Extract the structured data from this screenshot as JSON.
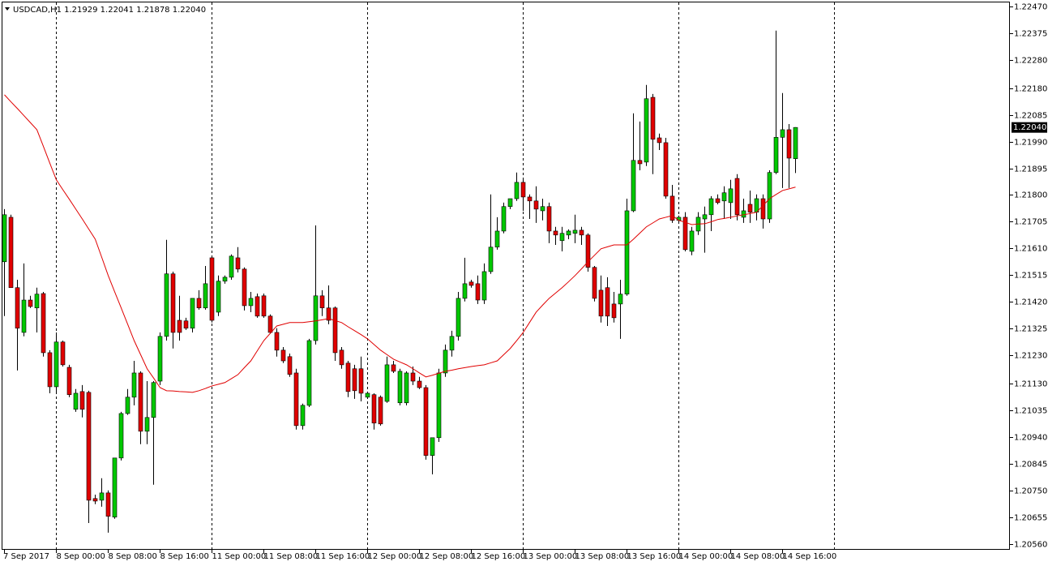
{
  "chart_data": {
    "type": "candlestick",
    "title": "USDCAD,H1  1.21929 1.22041 1.21878 1.22040",
    "last_price_label": "1.22040",
    "up_color": "#00c800",
    "down_color": "#e00000",
    "wick_color": "#000000",
    "ylim": [
      1.2054,
      1.22484
    ],
    "yticks": [
      {
        "value": 1.2247,
        "label": "1.22470"
      },
      1.22375,
      {
        "value": 1.2228,
        "label": "1.22280"
      },
      {
        "value": 1.2218,
        "label": "1.22180"
      },
      1.22085,
      {
        "value": 1.2199,
        "label": "1.21990"
      },
      1.21895,
      {
        "value": 1.218,
        "label": "1.21800"
      },
      1.21705,
      {
        "value": 1.2161,
        "label": "1.21610"
      },
      1.21515,
      {
        "value": 1.2142,
        "label": "1.21420"
      },
      1.21325,
      {
        "value": 1.2123,
        "label": "1.21230"
      },
      {
        "value": 1.2113,
        "label": "1.21130"
      },
      1.21035,
      {
        "value": 1.2094,
        "label": "1.20940"
      },
      1.20845,
      {
        "value": 1.2075,
        "label": "1.20750"
      },
      1.20655,
      {
        "value": 1.2056,
        "label": "1.20560"
      }
    ],
    "x": [
      "7 Sep 2017",
      null,
      null,
      null,
      null,
      null,
      null,
      null,
      "8 Sep 00:00",
      null,
      null,
      null,
      null,
      null,
      null,
      null,
      "8 Sep 08:00",
      null,
      null,
      null,
      null,
      null,
      null,
      null,
      "8 Sep 16:00",
      null,
      null,
      null,
      null,
      null,
      null,
      null,
      "11 Sep 00:00",
      null,
      null,
      null,
      null,
      null,
      null,
      null,
      "11 Sep 08:00",
      null,
      null,
      null,
      null,
      null,
      null,
      null,
      "11 Sep 16:00",
      null,
      null,
      null,
      null,
      null,
      null,
      null,
      "12 Sep 00:00",
      null,
      null,
      null,
      null,
      null,
      null,
      null,
      "12 Sep 08:00",
      null,
      null,
      null,
      null,
      null,
      null,
      null,
      "12 Sep 16:00",
      null,
      null,
      null,
      null,
      null,
      null,
      null,
      "13 Sep 00:00",
      null,
      null,
      null,
      null,
      null,
      null,
      null,
      "13 Sep 08:00",
      null,
      null,
      null,
      null,
      null,
      null,
      null,
      "13 Sep 16:00",
      null,
      null,
      null,
      null,
      null,
      null,
      null,
      "14 Sep 00:00",
      null,
      null,
      null,
      null,
      null,
      null,
      null,
      "14 Sep 08:00",
      null,
      null,
      null,
      null,
      null,
      null,
      null,
      "14 Sep 16:00",
      null,
      null
    ],
    "open": [
      1.21563,
      1.21721,
      1.21471,
      1.21312,
      1.21427,
      1.21399,
      1.2145,
      1.2124,
      1.21119,
      1.21278,
      1.21188,
      1.21039,
      1.21102,
      1.21099,
      1.20722,
      1.20716,
      1.20742,
      1.20656,
      1.20866,
      1.21024,
      1.21082,
      1.21168,
      1.20961,
      1.2101,
      1.21139,
      1.21298,
      1.2152,
      1.21355,
      1.21353,
      1.21327,
      1.21433,
      1.21399,
      1.21577,
      1.21384,
      1.21494,
      1.21508,
      1.21577,
      1.21537,
      1.21407,
      1.21439,
      1.21442,
      1.2137,
      1.21312,
      1.21249,
      1.21226,
      1.21168,
      1.20981,
      1.21053,
      1.21283,
      1.21442,
      1.21399,
      1.21399,
      1.21249,
      1.21203,
      1.21183,
      1.21183,
      1.21082,
      1.21091,
      1.21082,
      1.21067,
      1.21197,
      1.21062,
      1.21062,
      1.21168,
      1.21139,
      1.21116,
      1.20875,
      1.20938,
      1.21168,
      1.21249,
      1.21298,
      1.21433,
      1.21491,
      1.21485,
      1.21427,
      1.21528,
      1.21615,
      1.21672,
      1.21759,
      1.21787,
      1.21845,
      1.21793,
      1.21779,
      1.21744,
      1.21759,
      1.21672,
      1.21638,
      1.21658,
      1.21664,
      1.21675,
      1.21658,
      1.21543,
      1.21462,
      1.21471,
      1.21413,
      1.21413,
      1.21448,
      1.21744,
      1.21923,
      1.21917,
      1.22147,
      1.22003,
      1.21986,
      1.21796,
      1.2171,
      1.21721,
      1.216,
      1.21672,
      1.21715,
      1.2173,
      1.21787,
      1.21779,
      1.21773,
      1.21859,
      1.21721,
      1.21767,
      1.21739,
      1.21787,
      1.21715,
      1.2188,
      1.22005,
      1.22032,
      1.21929
    ],
    "high": [
      1.2175,
      1.2173,
      1.21499,
      1.21557,
      1.21442,
      1.21471,
      1.21456,
      1.21249,
      1.21312,
      1.21283,
      1.21197,
      1.21111,
      1.21125,
      1.21105,
      1.20736,
      1.20794,
      1.20751,
      1.20866,
      1.2103,
      1.21111,
      1.21211,
      1.21174,
      1.21139,
      1.21139,
      1.21312,
      1.21641,
      1.21528,
      1.21442,
      1.21364,
      1.21433,
      1.21462,
      1.21548,
      1.21583,
      1.21514,
      1.21514,
      1.21589,
      1.21615,
      1.21543,
      1.21456,
      1.2145,
      1.2145,
      1.21376,
      1.21327,
      1.2126,
      1.21237,
      1.21183,
      1.21059,
      1.21289,
      1.21692,
      1.21462,
      1.21479,
      1.21404,
      1.2126,
      1.21211,
      1.21197,
      1.21226,
      1.21102,
      1.21096,
      1.21088,
      1.21226,
      1.21211,
      1.21183,
      1.21174,
      1.21191,
      1.21154,
      1.21125,
      1.20938,
      1.21183,
      1.21269,
      1.21318,
      1.21456,
      1.21577,
      1.21499,
      1.21514,
      1.21557,
      1.21802,
      1.21721,
      1.21773,
      1.21787,
      1.2188,
      1.21854,
      1.21802,
      1.21831,
      1.21787,
      1.21773,
      1.21687,
      1.21687,
      1.21678,
      1.2173,
      1.21687,
      1.21664,
      1.21548,
      1.21514,
      1.21508,
      1.21456,
      1.21499,
      1.21787,
      1.2209,
      1.22061,
      1.22191,
      1.22159,
      1.22018,
      1.22003,
      1.21836,
      1.21727,
      1.21739,
      1.21687,
      1.21739,
      1.21759,
      1.21796,
      1.21802,
      1.21831,
      1.21854,
      1.21874,
      1.21787,
      1.21816,
      1.21802,
      1.21802,
      1.21888,
      1.22384,
      1.22162,
      1.22052,
      1.22041
    ],
    "low": [
      1.2137,
      1.21471,
      1.21177,
      1.21298,
      1.21399,
      1.21312,
      1.21226,
      1.21096,
      1.21096,
      1.21191,
      1.21082,
      1.2103,
      1.2101,
      1.20635,
      1.20702,
      1.20693,
      1.20601,
      1.2065,
      1.20857,
      1.21019,
      1.21053,
      1.20915,
      1.20915,
      1.20771,
      1.21125,
      1.21283,
      1.21255,
      1.21283,
      1.21321,
      1.21312,
      1.21393,
      1.21393,
      1.21347,
      1.2137,
      1.21485,
      1.21499,
      1.21525,
      1.2139,
      1.21384,
      1.21364,
      1.21364,
      1.21307,
      1.21226,
      1.21203,
      1.21154,
      1.20967,
      1.20967,
      1.21047,
      1.21269,
      1.2137,
      1.21341,
      1.21211,
      1.21183,
      1.21082,
      1.21076,
      1.21067,
      1.21076,
      1.20967,
      1.20981,
      1.21062,
      1.21168,
      1.21053,
      1.21053,
      1.21125,
      1.21111,
      1.2086,
      1.20808,
      1.20923,
      1.21154,
      1.21226,
      1.21283,
      1.21422,
      1.21471,
      1.21413,
      1.21413,
      1.2152,
      1.21606,
      1.21664,
      1.2175,
      1.21779,
      1.21744,
      1.21715,
      1.21701,
      1.2171,
      1.21629,
      1.21623,
      1.216,
      1.21643,
      1.21629,
      1.21623,
      1.21528,
      1.21422,
      1.21347,
      1.21335,
      1.21347,
      1.21289,
      1.21442,
      1.21739,
      1.21888,
      1.21903,
      1.21874,
      1.2196,
      1.21787,
      1.21701,
      1.21701,
      1.216,
      1.21586,
      1.21658,
      1.21595,
      1.21672,
      1.21767,
      1.21715,
      1.21715,
      1.2171,
      1.21701,
      1.21701,
      1.2171,
      1.21681,
      1.21701,
      1.21874,
      1.21825,
      1.21825,
      1.21878
    ],
    "close": [
      1.2173,
      1.21471,
      1.21327,
      1.21427,
      1.21404,
      1.21448,
      1.2124,
      1.21119,
      1.21278,
      1.21197,
      1.21091,
      1.21096,
      1.21039,
      1.20716,
      1.20713,
      1.20742,
      1.20659,
      1.20866,
      1.21024,
      1.21082,
      1.21168,
      1.20961,
      1.2101,
      1.21134,
      1.21298,
      1.2152,
      1.21312,
      1.21312,
      1.21327,
      1.21433,
      1.21399,
      1.21485,
      1.21355,
      1.21494,
      1.21508,
      1.21583,
      1.21537,
      1.21407,
      1.21433,
      1.2137,
      1.2137,
      1.21312,
      1.21249,
      1.21211,
      1.21163,
      1.20981,
      1.21053,
      1.21283,
      1.21442,
      1.21399,
      1.21355,
      1.2124,
      1.21197,
      1.21102,
      1.21105,
      1.21096,
      1.21096,
      1.2099,
      1.20987,
      1.21197,
      1.21174,
      1.21174,
      1.21168,
      1.21139,
      1.21116,
      1.20875,
      1.20938,
      1.21168,
      1.21249,
      1.21298,
      1.21433,
      1.21485,
      1.21479,
      1.21427,
      1.21528,
      1.21615,
      1.21672,
      1.21759,
      1.21787,
      1.21845,
      1.21793,
      1.21779,
      1.2175,
      1.21759,
      1.21672,
      1.21658,
      1.21664,
      1.21672,
      1.21675,
      1.21658,
      1.21543,
      1.21433,
      1.2137,
      1.2137,
      1.21364,
      1.21448,
      1.21744,
      1.21923,
      1.21911,
      1.22142,
      1.21998,
      1.21986,
      1.21796,
      1.2171,
      1.21721,
      1.21606,
      1.21672,
      1.21721,
      1.2173,
      1.21787,
      1.21773,
      1.21808,
      1.21822,
      1.2173,
      1.21744,
      1.21739,
      1.21787,
      1.21715,
      1.2188,
      1.22005,
      1.22032,
      1.21931,
      1.2204
    ],
    "overlay": {
      "color": "#e00000",
      "values": [
        1.22156,
        1.22131,
        1.22107,
        1.22082,
        1.22057,
        1.22032,
        1.21973,
        1.21913,
        1.21854,
        1.21819,
        1.21785,
        1.2175,
        1.21715,
        1.21679,
        1.21643,
        1.21579,
        1.21514,
        1.21456,
        1.21399,
        1.21341,
        1.21283,
        1.21233,
        1.21183,
        1.2115,
        1.21116,
        1.21105,
        1.21104,
        1.21102,
        1.21101,
        1.21099,
        1.21105,
        1.21113,
        1.21122,
        1.21128,
        1.21134,
        1.21148,
        1.21162,
        1.21187,
        1.21211,
        1.21247,
        1.21283,
        1.21309,
        1.21335,
        1.21341,
        1.21347,
        1.21347,
        1.21347,
        1.2135,
        1.21353,
        1.21357,
        1.21361,
        1.21354,
        1.21347,
        1.21332,
        1.21318,
        1.21304,
        1.21289,
        1.21269,
        1.21249,
        1.21233,
        1.21217,
        1.21207,
        1.21197,
        1.21183,
        1.21168,
        1.21154,
        1.2116,
        1.21167,
        1.21174,
        1.21178,
        1.21183,
        1.21187,
        1.21191,
        1.21194,
        1.21197,
        1.21204,
        1.21211,
        1.21233,
        1.21255,
        1.21283,
        1.21312,
        1.21348,
        1.21384,
        1.21409,
        1.21433,
        1.21452,
        1.21471,
        1.21492,
        1.21514,
        1.21538,
        1.21563,
        1.21586,
        1.21609,
        1.21616,
        1.21623,
        1.21623,
        1.21623,
        1.21643,
        1.21665,
        1.21687,
        1.21701,
        1.21715,
        1.21721,
        1.21727,
        1.2171,
        1.21703,
        1.21695,
        1.21697,
        1.21698,
        1.21705,
        1.21713,
        1.21717,
        1.21721,
        1.21726,
        1.2173,
        1.21734,
        1.21739,
        1.21763,
        1.21787,
        1.21802,
        1.21816,
        1.21822,
        1.21828
      ]
    }
  }
}
